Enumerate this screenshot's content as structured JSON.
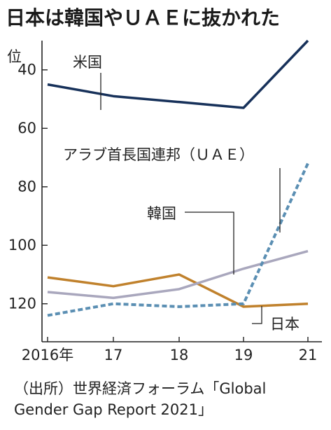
{
  "title": "日本は韓国やＵＡＥに抜かれた",
  "source": [
    "（出所）世界経済フォーラム「Global",
    "Gender Gap Report 2021」"
  ],
  "chart_data": {
    "type": "line",
    "y_unit_label": "位",
    "x": [
      2016,
      2017,
      2018,
      2019,
      2021
    ],
    "x_tick_labels": [
      "2016年",
      "17",
      "18",
      "19",
      "21"
    ],
    "y_ticks": [
      40,
      60,
      80,
      100,
      120
    ],
    "ylim": [
      30,
      133
    ],
    "y_inverted": true,
    "grid": false,
    "series": [
      {
        "name": "米国",
        "values": [
          45,
          49,
          51,
          53,
          30
        ],
        "color": "#17315a",
        "dash": "solid"
      },
      {
        "name": "アラブ首長国連邦（ＵＡＥ）",
        "values": [
          124,
          120,
          121,
          120,
          72
        ],
        "color": "#5b8fb3",
        "dash": "dashed"
      },
      {
        "name": "韓国",
        "values": [
          116,
          118,
          115,
          108,
          102
        ],
        "color": "#a9a7bd",
        "dash": "solid"
      },
      {
        "name": "日本",
        "values": [
          111,
          114,
          110,
          121,
          120
        ],
        "color": "#c0812c",
        "dash": "solid"
      }
    ]
  }
}
